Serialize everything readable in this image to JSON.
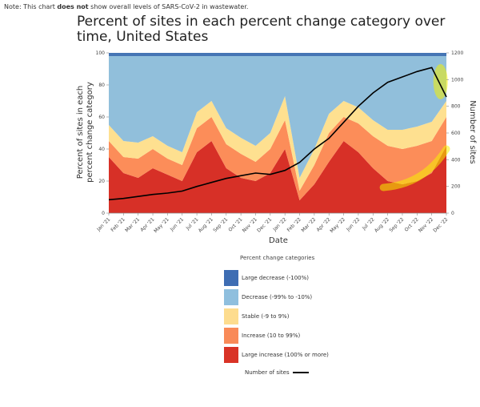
{
  "note": {
    "prefix": "Note: This chart ",
    "bold": "does not",
    "suffix": " show overall levels of SARS-CoV-2 in wastewater."
  },
  "chart_data": {
    "type": "area",
    "title": "Percent of sites in each percent change category over time, United States",
    "xlabel": "Date",
    "ylabel": "Percent of sites in each percent change category",
    "y2label": "Number of sites",
    "ylim": [
      0,
      100
    ],
    "y2lim": [
      0,
      1200
    ],
    "yticks": [
      "0",
      "20",
      "40",
      "60",
      "80",
      "100"
    ],
    "y2ticks": [
      "0",
      "200",
      "400",
      "600",
      "800",
      "1000",
      "1200"
    ],
    "categories": [
      "Jan '21",
      "Feb '21",
      "Mar '21",
      "Apr '21",
      "May '21",
      "Jun '21",
      "Jul '21",
      "Aug '21",
      "Sep '21",
      "Oct '21",
      "Nov '21",
      "Dec '21",
      "Jan '22",
      "Feb '22",
      "Mar '22",
      "Apr '22",
      "May '22",
      "Jun '22",
      "Jul '22",
      "Aug '22",
      "Sep '22",
      "Oct '22",
      "Nov '22",
      "Dec '22"
    ],
    "series": [
      {
        "name": "Large increase (100% or more)",
        "color": "#d73027",
        "values": [
          35,
          25,
          22,
          28,
          24,
          20,
          38,
          45,
          28,
          22,
          20,
          25,
          40,
          8,
          18,
          32,
          45,
          38,
          28,
          20,
          18,
          20,
          25,
          42
        ]
      },
      {
        "name": "Increase (10 to 99%)",
        "color": "#fc8d59",
        "values": [
          10,
          10,
          12,
          12,
          10,
          10,
          15,
          15,
          15,
          15,
          12,
          15,
          18,
          6,
          12,
          18,
          15,
          18,
          20,
          22,
          22,
          22,
          20,
          18
        ]
      },
      {
        "name": "Stable (-9 to 9%)",
        "color": "#fee090",
        "values": [
          10,
          10,
          10,
          8,
          8,
          8,
          10,
          10,
          10,
          10,
          10,
          10,
          15,
          8,
          10,
          12,
          10,
          10,
          10,
          10,
          12,
          12,
          12,
          10
        ]
      },
      {
        "name": "Decrease (-99% to -10%)",
        "color": "#91bfdb",
        "values": [
          43,
          53,
          54,
          50,
          56,
          60,
          35,
          28,
          45,
          51,
          56,
          48,
          25,
          76,
          58,
          36,
          28,
          32,
          40,
          46,
          46,
          44,
          41,
          28
        ]
      },
      {
        "name": "Large decrease (-100%)",
        "color": "#4575b4",
        "values": [
          2,
          2,
          2,
          2,
          2,
          2,
          2,
          2,
          2,
          2,
          2,
          2,
          2,
          2,
          2,
          2,
          2,
          2,
          2,
          2,
          2,
          2,
          2,
          2
        ]
      }
    ],
    "line_series": {
      "name": "Number of sites",
      "color": "#000000",
      "values": [
        100,
        110,
        125,
        140,
        150,
        165,
        200,
        230,
        260,
        280,
        300,
        290,
        320,
        380,
        480,
        560,
        680,
        800,
        900,
        980,
        1020,
        1060,
        1090,
        870
      ]
    },
    "legend": {
      "title": "Percent change categories",
      "position": "bottom",
      "items": [
        {
          "label": "Large decrease (-100%)",
          "color": "#3e6db3"
        },
        {
          "label": "Decrease (-99% to -10%)",
          "color": "#8fbfde"
        },
        {
          "label": "Stable (-9 to 9%)",
          "color": "#fddc8e"
        },
        {
          "label": "Increase (10 to 99%)",
          "color": "#f98a58"
        },
        {
          "label": "Large increase (100% or more)",
          "color": "#d93326"
        }
      ],
      "line_label": "Number of sites"
    },
    "highlight_color": "#f5f000"
  }
}
